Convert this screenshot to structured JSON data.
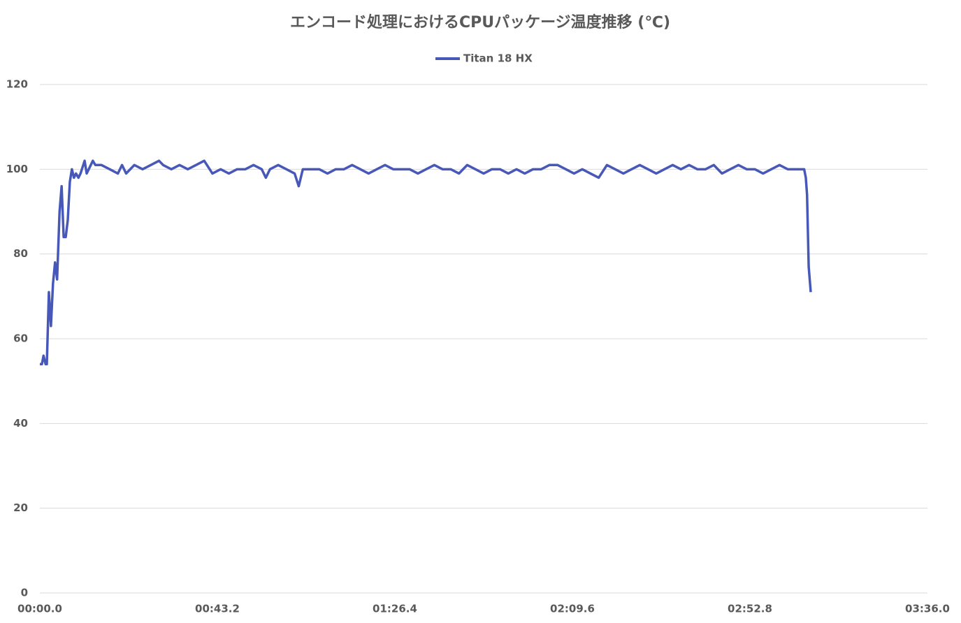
{
  "chart_data": {
    "type": "line",
    "title": "エンコード処理におけるCPUパッケージ温度推移 (℃)",
    "x": [
      0,
      0.5,
      0.9,
      1.4,
      1.7,
      2.2,
      2.7,
      3.2,
      3.7,
      4.2,
      4.8,
      5.3,
      5.8,
      6.3,
      6.8,
      7.3,
      7.8,
      8.3,
      8.8,
      9.4,
      9.9,
      10.9,
      11.4,
      11.9,
      12.9,
      13.5,
      15,
      17,
      19,
      20,
      21,
      23,
      25,
      27,
      29,
      30,
      32,
      34,
      36,
      38,
      40,
      42,
      44,
      46,
      48,
      50,
      52,
      54,
      55,
      56,
      58,
      60,
      62,
      63,
      64,
      66,
      68,
      70,
      72,
      74,
      76,
      78,
      80,
      82,
      84,
      86,
      88,
      90,
      92,
      94,
      96,
      98,
      100,
      102,
      104,
      106,
      108,
      110,
      112,
      114,
      116,
      118,
      120,
      122,
      124,
      126,
      128,
      130,
      132,
      134,
      136,
      138,
      140,
      142,
      144,
      146,
      148,
      150,
      152,
      154,
      156,
      158,
      160,
      162,
      164,
      166,
      168,
      170,
      172,
      174,
      176,
      178,
      180,
      182,
      184,
      186,
      186.4,
      186.7,
      187.1,
      187.6
    ],
    "series": [
      {
        "name": "Titan 18 HX",
        "color": "#4758b9",
        "values": [
          54,
          54,
          56,
          54,
          54,
          71,
          63,
          73,
          78,
          74,
          90,
          96,
          84,
          84,
          88,
          97,
          100,
          98,
          99,
          98,
          99,
          102,
          99,
          100,
          102,
          101,
          101,
          100,
          99,
          101,
          99,
          101,
          100,
          101,
          102,
          101,
          100,
          101,
          100,
          101,
          102,
          99,
          100,
          99,
          100,
          100,
          101,
          100,
          98,
          100,
          101,
          100,
          99,
          96,
          100,
          100,
          100,
          99,
          100,
          100,
          101,
          100,
          99,
          100,
          101,
          100,
          100,
          100,
          99,
          100,
          101,
          100,
          100,
          99,
          101,
          100,
          99,
          100,
          100,
          99,
          100,
          99,
          100,
          100,
          101,
          101,
          100,
          99,
          100,
          99,
          98,
          101,
          100,
          99,
          100,
          101,
          100,
          99,
          100,
          101,
          100,
          101,
          100,
          100,
          101,
          99,
          100,
          101,
          100,
          100,
          99,
          100,
          101,
          100,
          100,
          100,
          98,
          94,
          77,
          71
        ]
      }
    ],
    "xlim": [
      0,
      216
    ],
    "xticks": [
      {
        "value": 0,
        "label": "00:00.0"
      },
      {
        "value": 43.2,
        "label": "00:43.2"
      },
      {
        "value": 86.4,
        "label": "01:26.4"
      },
      {
        "value": 129.6,
        "label": "02:09.6"
      },
      {
        "value": 172.8,
        "label": "02:52.8"
      },
      {
        "value": 216,
        "label": "03:36.0"
      }
    ],
    "ylim": [
      0,
      120
    ],
    "yticks": [
      0,
      20,
      40,
      60,
      80,
      100,
      120
    ],
    "grid": true,
    "legend": "top"
  }
}
